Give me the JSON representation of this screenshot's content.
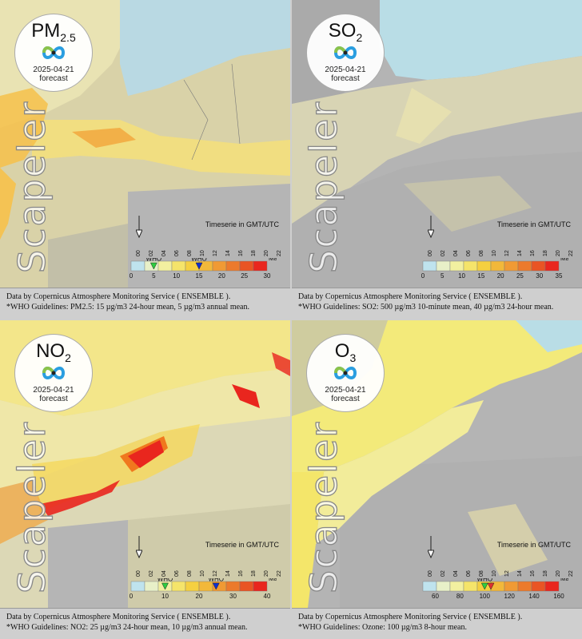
{
  "panels": [
    {
      "pollutant_main": "PM",
      "pollutant_sub": "2.5",
      "date": "2025-04-21",
      "forecast_label": "forecast",
      "watermark": "Scapeler",
      "timeserie_label": "Timeserie in GMT/UTC",
      "hours": [
        "00",
        "02",
        "04",
        "06",
        "08",
        "10",
        "12",
        "14",
        "16",
        "18",
        "20",
        "22"
      ],
      "scale_ticks": [
        "0",
        "5",
        "10",
        "15",
        "20",
        "25",
        "30"
      ],
      "who_labels": [
        "WHO",
        "WHO"
      ],
      "max_label": "Max",
      "footer_line1": "Data by Copernicus Atmosphere Monitoring Service ( ENSEMBLE ).",
      "footer_line2": "*WHO Guidelines: PM2.5: 15 µg/m3 24-hour mean, 5 µg/m3 annual mean.",
      "who_markers": [
        {
          "value": 5,
          "color": "#2ecc40"
        },
        {
          "value": 15,
          "color": "#1030d0"
        }
      ],
      "scale_min": 0,
      "scale_max": 30
    },
    {
      "pollutant_main": "SO",
      "pollutant_sub": "2",
      "date": "2025-04-21",
      "forecast_label": "forecast",
      "watermark": "Scapeler",
      "timeserie_label": "Timeserie in GMT/UTC",
      "hours": [
        "00",
        "02",
        "04",
        "06",
        "08",
        "10",
        "12",
        "14",
        "16",
        "18",
        "20",
        "22"
      ],
      "scale_ticks": [
        "0",
        "5",
        "10",
        "15",
        "20",
        "25",
        "30",
        "35"
      ],
      "who_labels": [],
      "max_label": "Max",
      "footer_line1": "Data by Copernicus Atmosphere Monitoring Service ( ENSEMBLE ).",
      "footer_line2": "*WHO Guidelines: SO2: 500 µg/m3 10-minute mean, 40 µg/m3 24-hour mean.",
      "who_markers": [],
      "scale_min": 0,
      "scale_max": 35
    },
    {
      "pollutant_main": "NO",
      "pollutant_sub": "2",
      "date": "2025-04-21",
      "forecast_label": "forecast",
      "watermark": "Scapeler",
      "timeserie_label": "Timeserie in GMT/UTC",
      "hours": [
        "00",
        "02",
        "04",
        "06",
        "08",
        "10",
        "12",
        "14",
        "16",
        "18",
        "20",
        "22"
      ],
      "scale_ticks": [
        "0",
        "10",
        "20",
        "30",
        "40"
      ],
      "who_labels": [
        "WHO",
        "WHO"
      ],
      "max_label": "Max",
      "footer_line1": "Data by Copernicus Atmosphere Monitoring Service ( ENSEMBLE ).",
      "footer_line2": "*WHO Guidelines: NO2: 25 µg/m3 24-hour mean, 10 µg/m3 annual mean.",
      "who_markers": [
        {
          "value": 10,
          "color": "#2ecc40"
        },
        {
          "value": 25,
          "color": "#1030d0"
        }
      ],
      "scale_min": 0,
      "scale_max": 40
    },
    {
      "pollutant_main": "O",
      "pollutant_sub": "3",
      "date": "2025-04-21",
      "forecast_label": "forecast",
      "watermark": "Scapeler",
      "timeserie_label": "Timeserie in GMT/UTC",
      "hours": [
        "00",
        "02",
        "04",
        "06",
        "08",
        "10",
        "12",
        "14",
        "16",
        "18",
        "20",
        "22"
      ],
      "scale_ticks": [
        "60",
        "80",
        "100",
        "120",
        "140",
        "160"
      ],
      "who_labels": [
        "WHO"
      ],
      "max_label": "Max",
      "footer_line1": "Data by Copernicus Atmosphere Monitoring Service ( ENSEMBLE ).",
      "footer_line2": "*WHO Guidelines: Ozone: 100 µg/m3 8-hour mean.",
      "who_markers": [
        {
          "value": 100,
          "color": "#2ecc40"
        },
        {
          "value": 105,
          "color": "#e03030"
        }
      ],
      "scale_min": 50,
      "scale_max": 160
    }
  ],
  "colors": {
    "sea": "#b7dbe6",
    "land_grey": "#b0b0b0",
    "pale_yellow": "#efeac0",
    "yellow": "#f5e46a",
    "orange": "#f2a43a",
    "red": "#e9261e"
  }
}
